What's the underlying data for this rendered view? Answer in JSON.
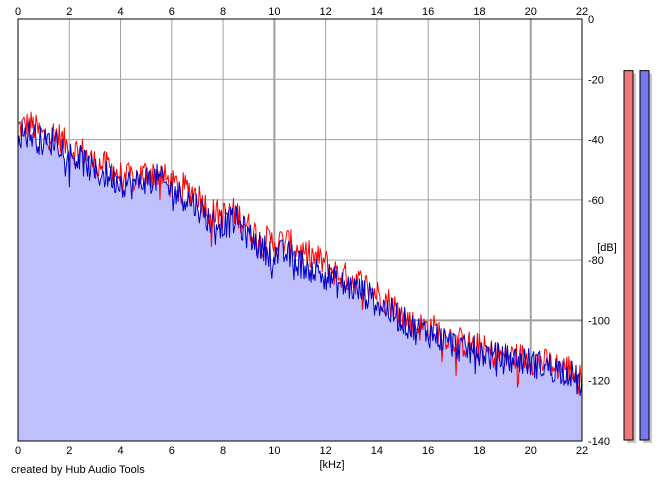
{
  "chart_data": {
    "type": "area",
    "title": "",
    "xlabel": "[kHz]",
    "ylabel": "[dB]",
    "xlim": [
      0,
      22
    ],
    "ylim": [
      -140,
      0
    ],
    "x_ticks": [
      "0",
      "2",
      "4",
      "6",
      "8",
      "10",
      "12",
      "14",
      "16",
      "18",
      "20",
      "22"
    ],
    "y_ticks": [
      "0",
      "-20",
      "-40",
      "-60",
      "-80",
      "-100",
      "-120",
      "-140"
    ],
    "grid": true,
    "x": [
      0,
      0.5,
      1,
      1.5,
      2,
      2.5,
      3,
      3.5,
      4,
      4.5,
      5,
      5.5,
      6,
      6.5,
      7,
      7.5,
      8,
      8.5,
      9,
      9.5,
      10,
      10.5,
      11,
      11.5,
      12,
      12.5,
      13,
      13.5,
      14,
      14.5,
      15,
      15.5,
      16,
      16.5,
      17,
      17.5,
      18,
      18.5,
      19,
      19.5,
      20,
      20.5,
      21,
      21.5,
      22
    ],
    "series": [
      {
        "color": "#ff0000",
        "values": [
          -36,
          -35,
          -39,
          -38,
          -43,
          -44,
          -48,
          -49,
          -52,
          -53,
          -51,
          -51,
          -55,
          -56,
          -58,
          -64,
          -65,
          -64,
          -69,
          -73,
          -74,
          -74,
          -77,
          -79,
          -81,
          -85,
          -86,
          -88,
          -91,
          -94,
          -98,
          -102,
          -102,
          -104,
          -106,
          -108,
          -109,
          -111,
          -112,
          -112,
          -113,
          -114,
          -115,
          -116,
          -120
        ]
      },
      {
        "color": "#0000c8",
        "values": [
          -38,
          -38,
          -41,
          -40,
          -45,
          -47,
          -51,
          -52,
          -54,
          -55,
          -53,
          -53,
          -57,
          -59,
          -62,
          -67,
          -68,
          -67,
          -72,
          -76,
          -78,
          -78,
          -81,
          -83,
          -85,
          -88,
          -89,
          -91,
          -94,
          -97,
          -100,
          -103,
          -104,
          -106,
          -108,
          -110,
          -110,
          -112,
          -113,
          -113,
          -114,
          -115,
          -116,
          -117,
          -122
        ]
      }
    ],
    "fill_color": "#c0c0ff",
    "level_meters": [
      {
        "color": "#ee7777",
        "level": 0.972
      },
      {
        "color": "#7777ee",
        "level": 0.972
      }
    ]
  },
  "footer": {
    "credit": "created by Hub Audio Tools"
  }
}
